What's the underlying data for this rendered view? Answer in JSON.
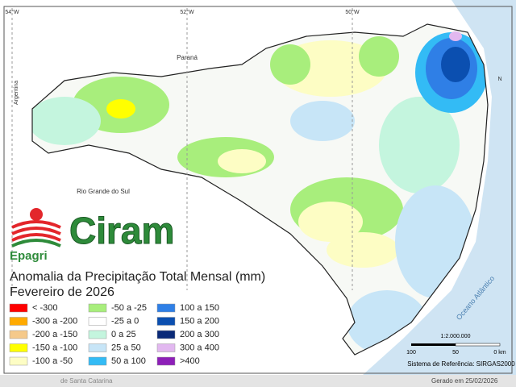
{
  "map": {
    "graticule": [
      "54°W",
      "52°W",
      "50°W"
    ],
    "labels": {
      "parana": "Paraná",
      "argentina": "Argentina",
      "rs": "Rio Grande do Sul",
      "ocean": "Oceano Atlântico",
      "north": "N"
    },
    "logo": {
      "name": "Ciram",
      "org": "Epagri"
    },
    "title": "Anomalia da Precipitação Total Mensal (mm)",
    "subtitle": "Fevereiro de 2026",
    "legend": [
      {
        "label": "< -300",
        "color": "#ff0000"
      },
      {
        "label": "-300 a -200",
        "color": "#ffaa00"
      },
      {
        "label": "-200 a -150",
        "color": "#f5c98a"
      },
      {
        "label": "-150 a -100",
        "color": "#ffff00"
      },
      {
        "label": "-100 a -50",
        "color": "#fdfdc4"
      },
      {
        "label": "-50 a -25",
        "color": "#a8ee7c"
      },
      {
        "label": "-25 a 0",
        "color": "#ffffff"
      },
      {
        "label": "0 a 25",
        "color": "#c4f5de"
      },
      {
        "label": "25 a 50",
        "color": "#c7e5f7"
      },
      {
        "label": "50 a 100",
        "color": "#33bbf5"
      },
      {
        "label": "100 a 150",
        "color": "#2f7fe6"
      },
      {
        "label": "150 a 200",
        "color": "#0b4fb0"
      },
      {
        "label": "200 a 300",
        "color": "#0a2a78"
      },
      {
        "label": "300 a 400",
        "color": "#e2b8f0"
      },
      {
        "label": ">400",
        "color": "#8d1fb8"
      }
    ],
    "scale": {
      "ratio": "1:2.000.000",
      "ticks": [
        "100",
        "50",
        "0 km"
      ]
    },
    "reference": "Sistema de Referência: SIRGAS2000",
    "footer": {
      "left": "de Santa Catarina",
      "right": "Gerado em 25/02/2026"
    }
  }
}
